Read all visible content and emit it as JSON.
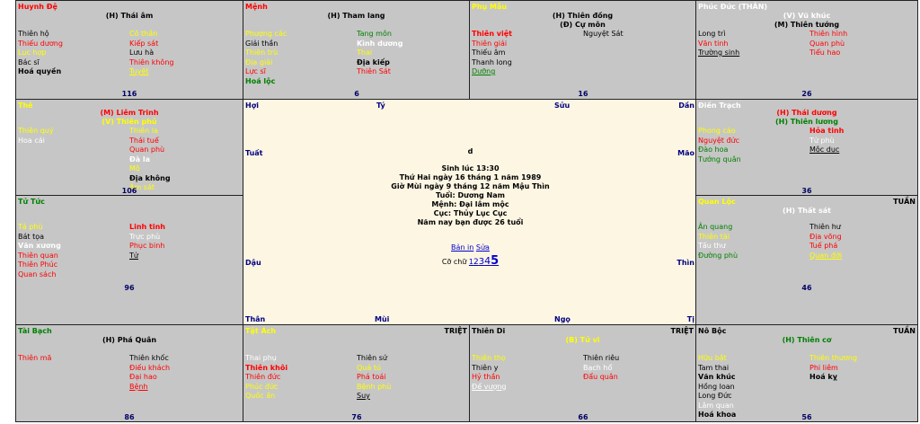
{
  "cells": {
    "huynh_de": {
      "name": "Huynh Đệ",
      "stars": [
        "(H) Thái âm"
      ],
      "left": [
        {
          "t": "Thiên hộ",
          "c": "k"
        },
        {
          "t": "Thiếu dương",
          "c": "r"
        },
        {
          "t": "Lục hợp",
          "c": "y"
        },
        {
          "t": "Bác sĩ",
          "c": "k"
        },
        {
          "t": "Hoá quyền",
          "c": "k b"
        }
      ],
      "right": [
        {
          "t": "Cô thần",
          "c": "y"
        },
        {
          "t": "Kiếp sát",
          "c": "r"
        },
        {
          "t": "Lưu hà",
          "c": "k"
        },
        {
          "t": "Thiên không",
          "c": "r"
        },
        {
          "t": "Tuyệt",
          "c": "y u"
        }
      ],
      "num": "116"
    },
    "menh": {
      "name": "Mệnh",
      "stars": [
        "(H) Tham lang"
      ],
      "left": [
        {
          "t": "Phượng các",
          "c": "y"
        },
        {
          "t": "Giải thần",
          "c": "k"
        },
        {
          "t": "Thiên trù",
          "c": "y"
        },
        {
          "t": "Địa giải",
          "c": "y"
        },
        {
          "t": "Lực sĩ",
          "c": "r"
        },
        {
          "t": "Hoá lộc",
          "c": "g b"
        }
      ],
      "right": [
        {
          "t": "Tang môn",
          "c": "g"
        },
        {
          "t": "Kình dương",
          "c": "w b"
        },
        {
          "t": "Thai",
          "c": "y"
        },
        {
          "t": "Địa kiếp",
          "c": "k b"
        },
        {
          "t": "Thiên Sát",
          "c": "r"
        }
      ],
      "num": "6"
    },
    "phu_mau": {
      "name": "Phụ Mẫu",
      "stars": [
        "(H) Thiên đồng",
        "(Đ) Cự môn"
      ],
      "left": [
        {
          "t": "Thiên việt",
          "c": "r b"
        },
        {
          "t": "Thiên giải",
          "c": "r"
        },
        {
          "t": "Thiếu âm",
          "c": "k"
        },
        {
          "t": "Thanh long",
          "c": "k"
        },
        {
          "t": "Dưỡng",
          "c": "g u"
        }
      ],
      "right": [
        {
          "t": "Nguyệt Sát",
          "c": "k"
        }
      ],
      "num": "16"
    },
    "phuc_duc": {
      "name": "Phúc Đức (THÂN)",
      "stars": [
        "(V) Vũ khúc",
        "(M) Thiên tướng"
      ],
      "left": [
        {
          "t": "Long trì",
          "c": "k"
        },
        {
          "t": "Văn tinh",
          "c": "r"
        },
        {
          "t": "Trường sinh",
          "c": "k u"
        }
      ],
      "right": [
        {
          "t": "Thiên hình",
          "c": "r"
        },
        {
          "t": "Quan phù",
          "c": "r"
        },
        {
          "t": "Tiểu hao",
          "c": "r"
        }
      ],
      "num": "26"
    },
    "the": {
      "name": "Thê",
      "stars": [
        "(M) Liêm Trinh",
        "(V) Thiên phủ"
      ],
      "left": [
        {
          "t": "Thiên quý",
          "c": "y"
        },
        {
          "t": "Hoa cái",
          "c": "w"
        }
      ],
      "right": [
        {
          "t": "Thiên la",
          "c": "y"
        },
        {
          "t": "Thái tuế",
          "c": "r"
        },
        {
          "t": "Quan phù",
          "c": "r"
        },
        {
          "t": "Đà la",
          "c": "w b"
        },
        {
          "t": "Mộ",
          "c": "y"
        },
        {
          "t": "Địa không",
          "c": "k b"
        },
        {
          "t": "Âm sát",
          "c": "y"
        }
      ],
      "num": "106"
    },
    "dien_trach": {
      "name": "Điền Trạch",
      "stars": [
        "(H) Thái dương",
        "(H) Thiên lương"
      ],
      "left": [
        {
          "t": "Phong cáo",
          "c": "y"
        },
        {
          "t": "Nguyệt đức",
          "c": "r"
        },
        {
          "t": "Đào hoa",
          "c": "g"
        },
        {
          "t": "Tướng quân",
          "c": "g"
        }
      ],
      "right": [
        {
          "t": "Hỏa tinh",
          "c": "r b"
        },
        {
          "t": "Tử phù",
          "c": "w"
        },
        {
          "t": "Mộc dục",
          "c": "k u"
        }
      ],
      "num": "36"
    },
    "tu_tuc": {
      "name": "Tử Tức",
      "stars": [],
      "left": [
        {
          "t": "Tả phù",
          "c": "y"
        },
        {
          "t": "Bát tọa",
          "c": "k"
        },
        {
          "t": "Văn xương",
          "c": "w b"
        },
        {
          "t": "Thiên quan",
          "c": "r"
        },
        {
          "t": "Thiên Phúc",
          "c": "r"
        },
        {
          "t": "Quan sách",
          "c": "r"
        }
      ],
      "right": [
        {
          "t": "Linh tinh",
          "c": "r b"
        },
        {
          "t": "Trực phù",
          "c": "w"
        },
        {
          "t": "Phục binh",
          "c": "r"
        },
        {
          "t": "Tử",
          "c": "k u"
        }
      ],
      "num": "96"
    },
    "quan_loc": {
      "name": "Quan Lộc",
      "tag": "TUẦN",
      "stars": [
        "(H) Thất sát"
      ],
      "left": [
        {
          "t": "Ân quang",
          "c": "g"
        },
        {
          "t": "Thiên tài",
          "c": "y"
        },
        {
          "t": "Tấu thư",
          "c": "w"
        },
        {
          "t": "Đường phù",
          "c": "g"
        }
      ],
      "right": [
        {
          "t": "Thiên hư",
          "c": "k"
        },
        {
          "t": "Địa võng",
          "c": "r"
        },
        {
          "t": "Tuế phá",
          "c": "r"
        },
        {
          "t": "Quan đới",
          "c": "y u"
        }
      ],
      "num": "46"
    },
    "tai_bach": {
      "name": "Tài Bạch",
      "stars": [
        "(H) Phá Quân"
      ],
      "left": [
        {
          "t": "Thiên mã",
          "c": "r"
        }
      ],
      "right": [
        {
          "t": "Thiên khốc",
          "c": "k"
        },
        {
          "t": "Điếu khách",
          "c": "r"
        },
        {
          "t": "Đại hao",
          "c": "r"
        },
        {
          "t": "Bệnh",
          "c": "r u"
        }
      ],
      "num": "86"
    },
    "tat_ach": {
      "name": "Tật Ách",
      "tag": "TRIỆT",
      "stars": [],
      "left": [
        {
          "t": "Thai phụ",
          "c": "w"
        },
        {
          "t": "Thiên khôi",
          "c": "r b"
        },
        {
          "t": "Thiên đức",
          "c": "r"
        },
        {
          "t": "Phúc đức",
          "c": "y"
        },
        {
          "t": "Quốc ấn",
          "c": "y"
        }
      ],
      "right": [
        {
          "t": "Thiên sứ",
          "c": "k"
        },
        {
          "t": "Quả tú",
          "c": "y"
        },
        {
          "t": "Phá toái",
          "c": "r"
        },
        {
          "t": "Bệnh phù",
          "c": "y"
        },
        {
          "t": "Suy",
          "c": "k u"
        }
      ],
      "num": "76"
    },
    "thien_di": {
      "name": "Thiên Di",
      "tag": "TRIỆT",
      "stars": [
        "(B) Tử vi"
      ],
      "left": [
        {
          "t": "Thiên thọ",
          "c": "y"
        },
        {
          "t": "Thiên y",
          "c": "k"
        },
        {
          "t": "Hỷ thần",
          "c": "r"
        },
        {
          "t": "Đế vượng",
          "c": "w u"
        }
      ],
      "right": [
        {
          "t": "Thiên riêu",
          "c": "k"
        },
        {
          "t": "Bạch hổ",
          "c": "w"
        },
        {
          "t": "Đẩu quân",
          "c": "r"
        }
      ],
      "num": "66"
    },
    "no_boc": {
      "name": "Nô Bộc",
      "tag": "TUẦN",
      "stars": [
        "(H) Thiên cơ"
      ],
      "left": [
        {
          "t": "Hữu bật",
          "c": "y"
        },
        {
          "t": "Tam thai",
          "c": "k"
        },
        {
          "t": "Văn khúc",
          "c": "k b"
        },
        {
          "t": "Hồng loan",
          "c": "k"
        },
        {
          "t": "Long Đức",
          "c": "k"
        },
        {
          "t": "Lâm quan",
          "c": "w"
        },
        {
          "t": "Hoá khoa",
          "c": "k b"
        }
      ],
      "right": [
        {
          "t": "Thiên thương",
          "c": "y"
        },
        {
          "t": "Phi liêm",
          "c": "r"
        },
        {
          "t": "Hoá kỵ",
          "c": "k b"
        }
      ],
      "num": "56"
    }
  },
  "branches": {
    "hoi": "Hợi",
    "ty": "Tý",
    "suu": "Sửu",
    "dan": "Dần",
    "tuat": "Tuất",
    "mao": "Mão",
    "dau": "Dậu",
    "thin": "Thìn",
    "than": "Thân",
    "mui": "Mùi",
    "ngo": "Ngọ",
    "ti": "Tị"
  },
  "center": {
    "initial": "d",
    "lines": [
      "Sinh lúc 13:30",
      "Thứ Hai ngày 16 tháng 1 năm 1989",
      "Giờ Mùi ngày 9 tháng 12 năm Mậu Thìn",
      "Tuổi: Dương Nam",
      "Mệnh: Đại lâm mộc",
      "Cục: Thủy Lục Cục",
      "Năm nay bạn được 26 tuổi"
    ],
    "print_link": "Bản in",
    "edit_link": "Sửa",
    "font_size_label": "Cỡ chữ",
    "font_sizes": [
      "1",
      "2",
      "3",
      "4",
      "5"
    ]
  },
  "colors": {
    "cell_bg": "#c6c6c6",
    "center_bg": "#fdf6e3",
    "border": "#222222"
  }
}
